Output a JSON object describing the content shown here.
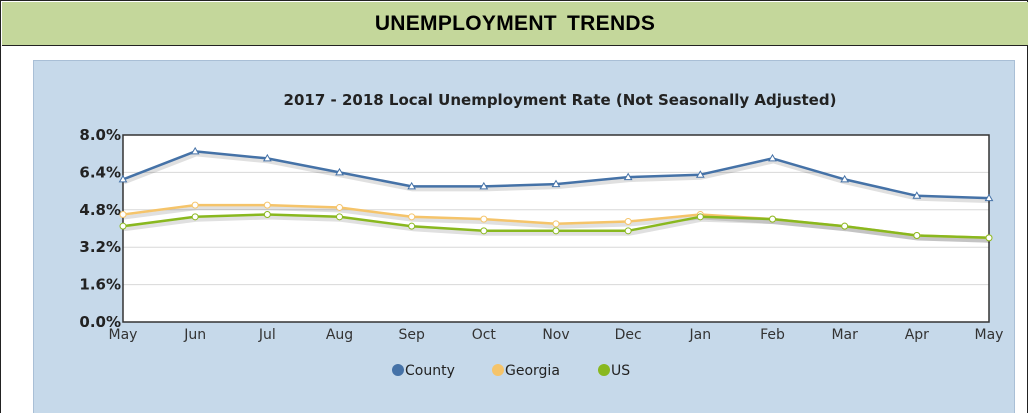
{
  "header": {
    "title": "UNEMPLOYMENT  TRENDS"
  },
  "chart_data": {
    "type": "line",
    "title": "2017 - 2018 Local Unemployment Rate (Not Seasonally Adjusted)",
    "xlabel": "",
    "ylabel": "",
    "categories": [
      "May",
      "Jun",
      "Jul",
      "Aug",
      "Sep",
      "Oct",
      "Nov",
      "Dec",
      "Jan",
      "Feb",
      "Mar",
      "Apr",
      "May"
    ],
    "ylim": [
      0,
      8
    ],
    "yticks": [
      0,
      1.6,
      3.2,
      4.8,
      6.4,
      8.0
    ],
    "ytick_labels": [
      "0.0%",
      "1.6%",
      "3.2%",
      "4.8%",
      "6.4%",
      "8.0%"
    ],
    "grid": true,
    "legend_position": "bottom",
    "series": [
      {
        "name": "County",
        "color": "#4572a7",
        "values": [
          6.1,
          7.3,
          7.0,
          6.4,
          5.8,
          5.8,
          5.9,
          6.2,
          6.3,
          7.0,
          6.1,
          5.4,
          5.3
        ]
      },
      {
        "name": "Georgia",
        "color": "#f5c46a",
        "values": [
          4.6,
          5.0,
          5.0,
          4.9,
          4.5,
          4.4,
          4.2,
          4.3,
          4.6,
          4.4,
          4.1,
          3.7,
          3.6
        ]
      },
      {
        "name": "US",
        "color": "#89b81f",
        "values": [
          4.1,
          4.5,
          4.6,
          4.5,
          4.1,
          3.9,
          3.9,
          3.9,
          4.5,
          4.4,
          4.1,
          3.7,
          3.6
        ]
      }
    ]
  }
}
